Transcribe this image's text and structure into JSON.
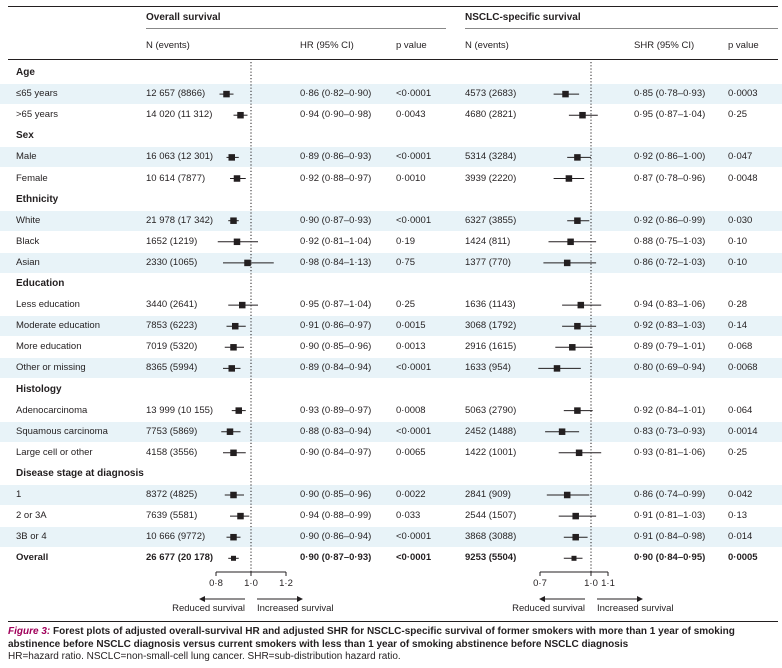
{
  "headers": {
    "overall_title": "Overall survival",
    "nsclc_title": "NSCLC-specific survival",
    "n_events": "N (events)",
    "hr_ci": "HR (95% CI)",
    "shr_ci": "SHR (95% CI)",
    "p_value": "p value"
  },
  "rows": [
    {
      "kind": "section",
      "label": "Age"
    },
    {
      "kind": "row",
      "label": "≤65 years",
      "n_os": "12 657 (8866)",
      "hr": "0·86 (0·82–0·90)",
      "p_os": "<0·0001",
      "n_ns": "4573 (2683)",
      "shr": "0·85 (0·78–0·93)",
      "p_ns": "0·0003"
    },
    {
      "kind": "row",
      "label": ">65 years",
      "n_os": "14 020 (11 312)",
      "hr": "0·94 (0·90–0·98)",
      "p_os": "0·0043",
      "n_ns": "4680 (2821)",
      "shr": "0·95 (0·87–1·04)",
      "p_ns": "0·25"
    },
    {
      "kind": "section",
      "label": "Sex"
    },
    {
      "kind": "row",
      "label": "Male",
      "n_os": "16 063 (12 301)",
      "hr": "0·89 (0·86–0·93)",
      "p_os": "<0·0001",
      "n_ns": "5314 (3284)",
      "shr": "0·92 (0·86–1·00)",
      "p_ns": "0·047"
    },
    {
      "kind": "row",
      "label": "Female",
      "n_os": "10 614 (7877)",
      "hr": "0·92 (0·88–0·97)",
      "p_os": "0·0010",
      "n_ns": "3939 (2220)",
      "shr": "0·87 (0·78–0·96)",
      "p_ns": "0·0048"
    },
    {
      "kind": "section",
      "label": "Ethnicity"
    },
    {
      "kind": "row",
      "label": "White",
      "n_os": "21 978 (17 342)",
      "hr": "0·90 (0·87–0·93)",
      "p_os": "<0·0001",
      "n_ns": "6327 (3855)",
      "shr": "0·92 (0·86–0·99)",
      "p_ns": "0·030"
    },
    {
      "kind": "row",
      "label": "Black",
      "n_os": "1652 (1219)",
      "hr": "0·92 (0·81–1·04)",
      "p_os": "0·19",
      "n_ns": "1424 (811)",
      "shr": "0·88 (0·75–1·03)",
      "p_ns": "0·10"
    },
    {
      "kind": "row",
      "label": "Asian",
      "n_os": "2330 (1065)",
      "hr": "0·98 (0·84–1·13)",
      "p_os": "0·75",
      "n_ns": "1377 (770)",
      "shr": "0·86 (0·72–1·03)",
      "p_ns": "0·10"
    },
    {
      "kind": "section",
      "label": "Education"
    },
    {
      "kind": "row",
      "label": "Less education",
      "n_os": "3440 (2641)",
      "hr": "0·95 (0·87–1·04)",
      "p_os": "0·25",
      "n_ns": "1636 (1143)",
      "shr": "0·94 (0·83–1·06)",
      "p_ns": "0·28"
    },
    {
      "kind": "row",
      "label": "Moderate education",
      "n_os": "7853 (6223)",
      "hr": "0·91 (0·86–0·97)",
      "p_os": "0·0015",
      "n_ns": "3068 (1792)",
      "shr": "0·92 (0·83–1·03)",
      "p_ns": "0·14"
    },
    {
      "kind": "row",
      "label": "More education",
      "n_os": "7019 (5320)",
      "hr": "0·90 (0·85–0·96)",
      "p_os": "0·0013",
      "n_ns": "2916 (1615)",
      "shr": "0·89 (0·79–1·01)",
      "p_ns": "0·068"
    },
    {
      "kind": "row",
      "label": "Other or missing",
      "n_os": "8365 (5994)",
      "hr": "0·89 (0·84–0·94)",
      "p_os": "<0·0001",
      "n_ns": "1633 (954)",
      "shr": "0·80 (0·69–0·94)",
      "p_ns": "0·0068"
    },
    {
      "kind": "section",
      "label": "Histology"
    },
    {
      "kind": "row",
      "label": "Adenocarcinoma",
      "n_os": "13 999 (10 155)",
      "hr": "0·93 (0·89–0·97)",
      "p_os": "0·0008",
      "n_ns": "5063 (2790)",
      "shr": "0·92 (0·84–1·01)",
      "p_ns": "0·064"
    },
    {
      "kind": "row",
      "label": "Squamous carcinoma",
      "n_os": "7753 (5869)",
      "hr": "0·88 (0·83–0·94)",
      "p_os": "<0·0001",
      "n_ns": "2452 (1488)",
      "shr": "0·83 (0·73–0·93)",
      "p_ns": "0·0014"
    },
    {
      "kind": "row",
      "label": "Large cell or other",
      "n_os": "4158 (3556)",
      "hr": "0·90 (0·84–0·97)",
      "p_os": "0·0065",
      "n_ns": "1422 (1001)",
      "shr": "0·93 (0·81–1·06)",
      "p_ns": "0·25"
    },
    {
      "kind": "section",
      "label": "Disease stage at diagnosis"
    },
    {
      "kind": "row",
      "label": "1",
      "n_os": "8372 (4825)",
      "hr": "0·90 (0·85–0·96)",
      "p_os": "0·0022",
      "n_ns": "2841 (909)",
      "shr": "0·86 (0·74–0·99)",
      "p_ns": "0·042"
    },
    {
      "kind": "row",
      "label": "2 or 3A",
      "n_os": "7639 (5581)",
      "hr": "0·94 (0·88–0·99)",
      "p_os": "0·033",
      "n_ns": "2544 (1507)",
      "shr": "0·91 (0·81–1·03)",
      "p_ns": "0·13"
    },
    {
      "kind": "row",
      "label": "3B or 4",
      "n_os": "10 666 (9772)",
      "hr": "0·90 (0·86–0·94)",
      "p_os": "<0·0001",
      "n_ns": "3868 (3088)",
      "shr": "0·91 (0·84–0·98)",
      "p_ns": "0·014"
    },
    {
      "kind": "row",
      "label": "Overall",
      "bold": true,
      "n_os": "26 677 (20 178)",
      "hr": "0·90 (0·87–0·93)",
      "p_os": "<0·0001",
      "n_ns": "9253 (5504)",
      "shr": "0·90 (0·84–0·95)",
      "p_ns": "0·0005"
    }
  ],
  "chart_data": [
    {
      "type": "forest",
      "xlim": [
        0.8,
        1.2
      ],
      "ticks": [
        "0·8",
        "1·0",
        "1·2"
      ],
      "reference_line": 1.0,
      "annotations": [
        "Reduced survival",
        "Increased survival"
      ],
      "series": [
        {
          "values": [
            {
              "est": 0.86,
              "lo": 0.82,
              "hi": 0.9
            },
            {
              "est": 0.94,
              "lo": 0.9,
              "hi": 0.98
            },
            {
              "est": 0.89,
              "lo": 0.86,
              "hi": 0.93
            },
            {
              "est": 0.92,
              "lo": 0.88,
              "hi": 0.97
            },
            {
              "est": 0.9,
              "lo": 0.87,
              "hi": 0.93
            },
            {
              "est": 0.92,
              "lo": 0.81,
              "hi": 1.04
            },
            {
              "est": 0.98,
              "lo": 0.84,
              "hi": 1.13
            },
            {
              "est": 0.95,
              "lo": 0.87,
              "hi": 1.04
            },
            {
              "est": 0.91,
              "lo": 0.86,
              "hi": 0.97
            },
            {
              "est": 0.9,
              "lo": 0.85,
              "hi": 0.96
            },
            {
              "est": 0.89,
              "lo": 0.84,
              "hi": 0.94
            },
            {
              "est": 0.93,
              "lo": 0.89,
              "hi": 0.97
            },
            {
              "est": 0.88,
              "lo": 0.83,
              "hi": 0.94
            },
            {
              "est": 0.9,
              "lo": 0.84,
              "hi": 0.97
            },
            {
              "est": 0.9,
              "lo": 0.85,
              "hi": 0.96
            },
            {
              "est": 0.94,
              "lo": 0.88,
              "hi": 0.99
            },
            {
              "est": 0.9,
              "lo": 0.86,
              "hi": 0.94
            },
            {
              "est": 0.9,
              "lo": 0.87,
              "hi": 0.93
            }
          ]
        }
      ]
    },
    {
      "type": "forest",
      "xlim": [
        0.7,
        1.1
      ],
      "ticks": [
        "0·7",
        "1·0",
        "1·1"
      ],
      "reference_line": 1.0,
      "annotations": [
        "Reduced survival",
        "Increased survival"
      ],
      "series": [
        {
          "values": [
            {
              "est": 0.85,
              "lo": 0.78,
              "hi": 0.93
            },
            {
              "est": 0.95,
              "lo": 0.87,
              "hi": 1.04
            },
            {
              "est": 0.92,
              "lo": 0.86,
              "hi": 1.0
            },
            {
              "est": 0.87,
              "lo": 0.78,
              "hi": 0.96
            },
            {
              "est": 0.92,
              "lo": 0.86,
              "hi": 0.99
            },
            {
              "est": 0.88,
              "lo": 0.75,
              "hi": 1.03
            },
            {
              "est": 0.86,
              "lo": 0.72,
              "hi": 1.03
            },
            {
              "est": 0.94,
              "lo": 0.83,
              "hi": 1.06
            },
            {
              "est": 0.92,
              "lo": 0.83,
              "hi": 1.03
            },
            {
              "est": 0.89,
              "lo": 0.79,
              "hi": 1.01
            },
            {
              "est": 0.8,
              "lo": 0.69,
              "hi": 0.94
            },
            {
              "est": 0.92,
              "lo": 0.84,
              "hi": 1.01
            },
            {
              "est": 0.83,
              "lo": 0.73,
              "hi": 0.93
            },
            {
              "est": 0.93,
              "lo": 0.81,
              "hi": 1.06
            },
            {
              "est": 0.86,
              "lo": 0.74,
              "hi": 0.99
            },
            {
              "est": 0.91,
              "lo": 0.81,
              "hi": 1.03
            },
            {
              "est": 0.91,
              "lo": 0.84,
              "hi": 0.98
            },
            {
              "est": 0.9,
              "lo": 0.84,
              "hi": 0.95
            }
          ]
        }
      ]
    }
  ],
  "caption": {
    "figure_label": "Figure 3:",
    "title": " Forest plots of adjusted overall-survival HR and adjusted SHR for NSCLC-specific survival of former smokers with more than 1 year of smoking abstinence before NSCLC diagnosis versus current smokers with less than 1 year of smoking abstinence before NSCLC diagnosis",
    "abbreviations": "HR=hazard ratio. NSCLC=non-small-cell lung cancer. SHR=sub-distribution hazard ratio."
  },
  "colors": {
    "band": "#e8f3f8",
    "ink": "#231f20",
    "caption_accent": "#a0005a"
  }
}
